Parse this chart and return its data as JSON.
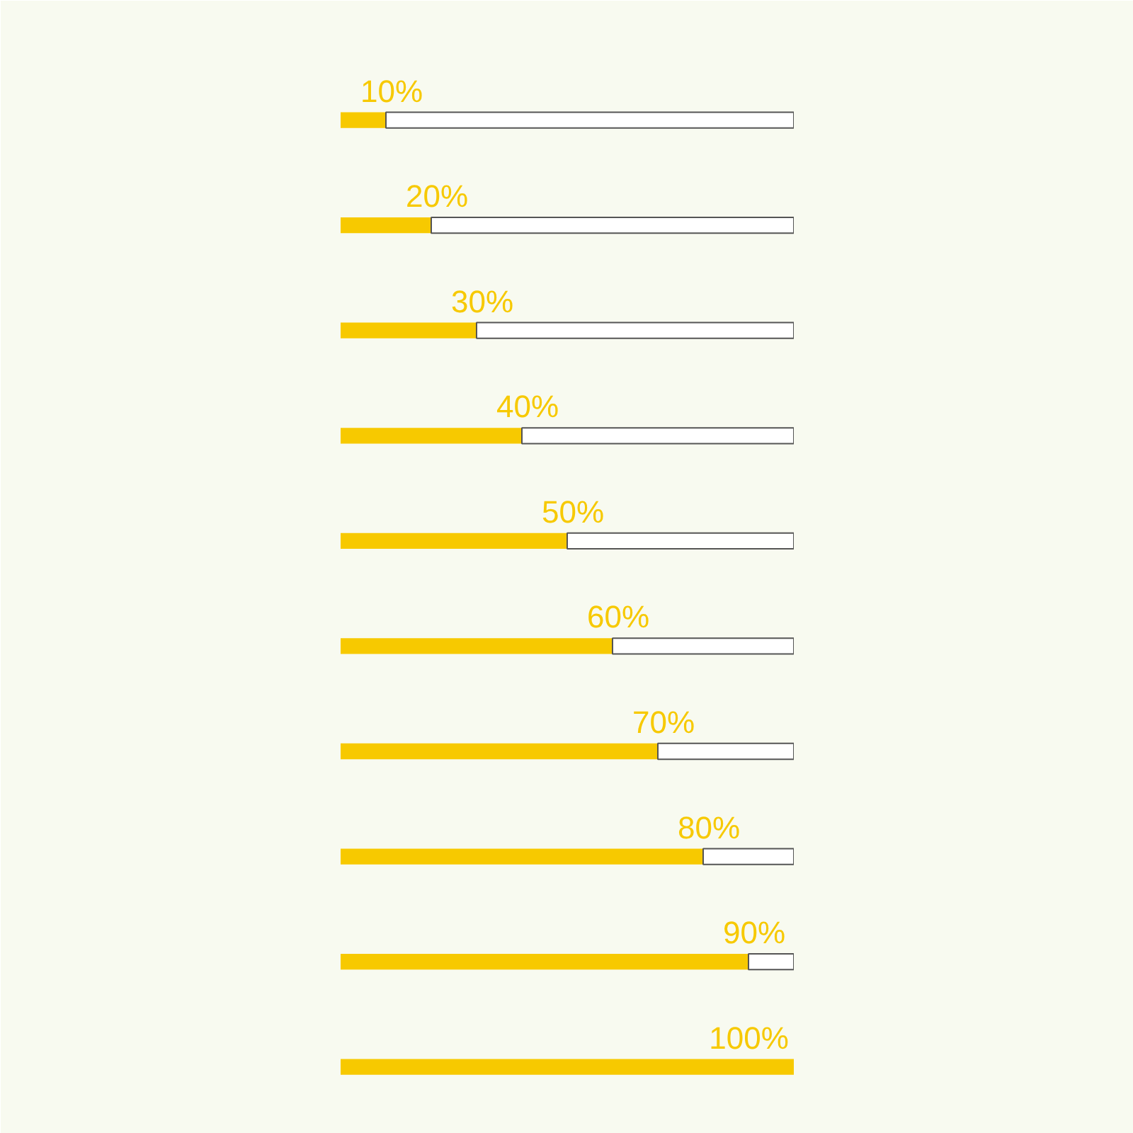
{
  "chart_data": {
    "type": "bar",
    "orientation": "horizontal",
    "stacked": true,
    "categories": [
      null,
      null,
      null,
      null,
      null,
      null,
      null,
      null,
      null,
      null
    ],
    "series": [
      {
        "color": "#f7c900",
        "values": [
          10,
          20,
          30,
          40,
          50,
          60,
          70,
          80,
          90,
          100
        ],
        "value_labels": [
          "10%",
          "20%",
          "30%",
          "40%",
          "50%",
          "60%",
          "70%",
          "80%",
          "90%",
          "100%"
        ]
      },
      {
        "color": "#ffffff",
        "values": [
          90,
          80,
          70,
          60,
          50,
          40,
          30,
          20,
          10,
          0
        ]
      }
    ],
    "xlim": [
      0,
      100
    ],
    "tick_labels": false
  }
}
